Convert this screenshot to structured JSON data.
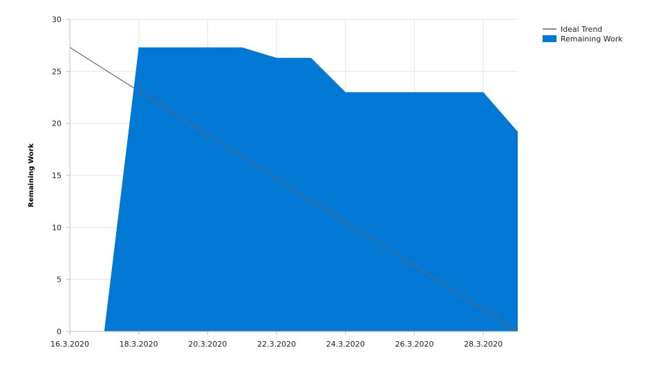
{
  "chart_data": {
    "type": "area",
    "title": "",
    "xlabel": "",
    "ylabel": "Remaining Work",
    "ylim": [
      0,
      30
    ],
    "yticks": [
      "0",
      "5",
      "10",
      "15",
      "20",
      "25",
      "30"
    ],
    "xlim": [
      "16.3.2020",
      "29.3.2020"
    ],
    "xticks": [
      "16.3.2020",
      "18.3.2020",
      "20.3.2020",
      "22.3.2020",
      "24.3.2020",
      "26.3.2020",
      "28.3.2020"
    ],
    "grid": true,
    "legend_position": "top-right",
    "series": [
      {
        "name": "Remaining Work",
        "type": "area",
        "color": "#0078d4",
        "points": [
          {
            "x": "17.3.2020",
            "y": 0
          },
          {
            "x": "18.3.2020",
            "y": 27.3
          },
          {
            "x": "19.3.2020",
            "y": 27.3
          },
          {
            "x": "20.3.2020",
            "y": 27.3
          },
          {
            "x": "21.3.2020",
            "y": 27.3
          },
          {
            "x": "22.3.2020",
            "y": 26.3
          },
          {
            "x": "23.3.2020",
            "y": 26.3
          },
          {
            "x": "24.3.2020",
            "y": 23
          },
          {
            "x": "25.3.2020",
            "y": 23
          },
          {
            "x": "26.3.2020",
            "y": 23
          },
          {
            "x": "27.3.2020",
            "y": 23
          },
          {
            "x": "28.3.2020",
            "y": 23
          },
          {
            "x": "29.3.2020",
            "y": 19.2
          }
        ]
      },
      {
        "name": "Ideal Trend",
        "type": "line",
        "color": "#666666",
        "points": [
          {
            "x": "16.3.2020",
            "y": 27.3
          },
          {
            "x": "29.3.2020",
            "y": 0
          }
        ]
      }
    ]
  }
}
